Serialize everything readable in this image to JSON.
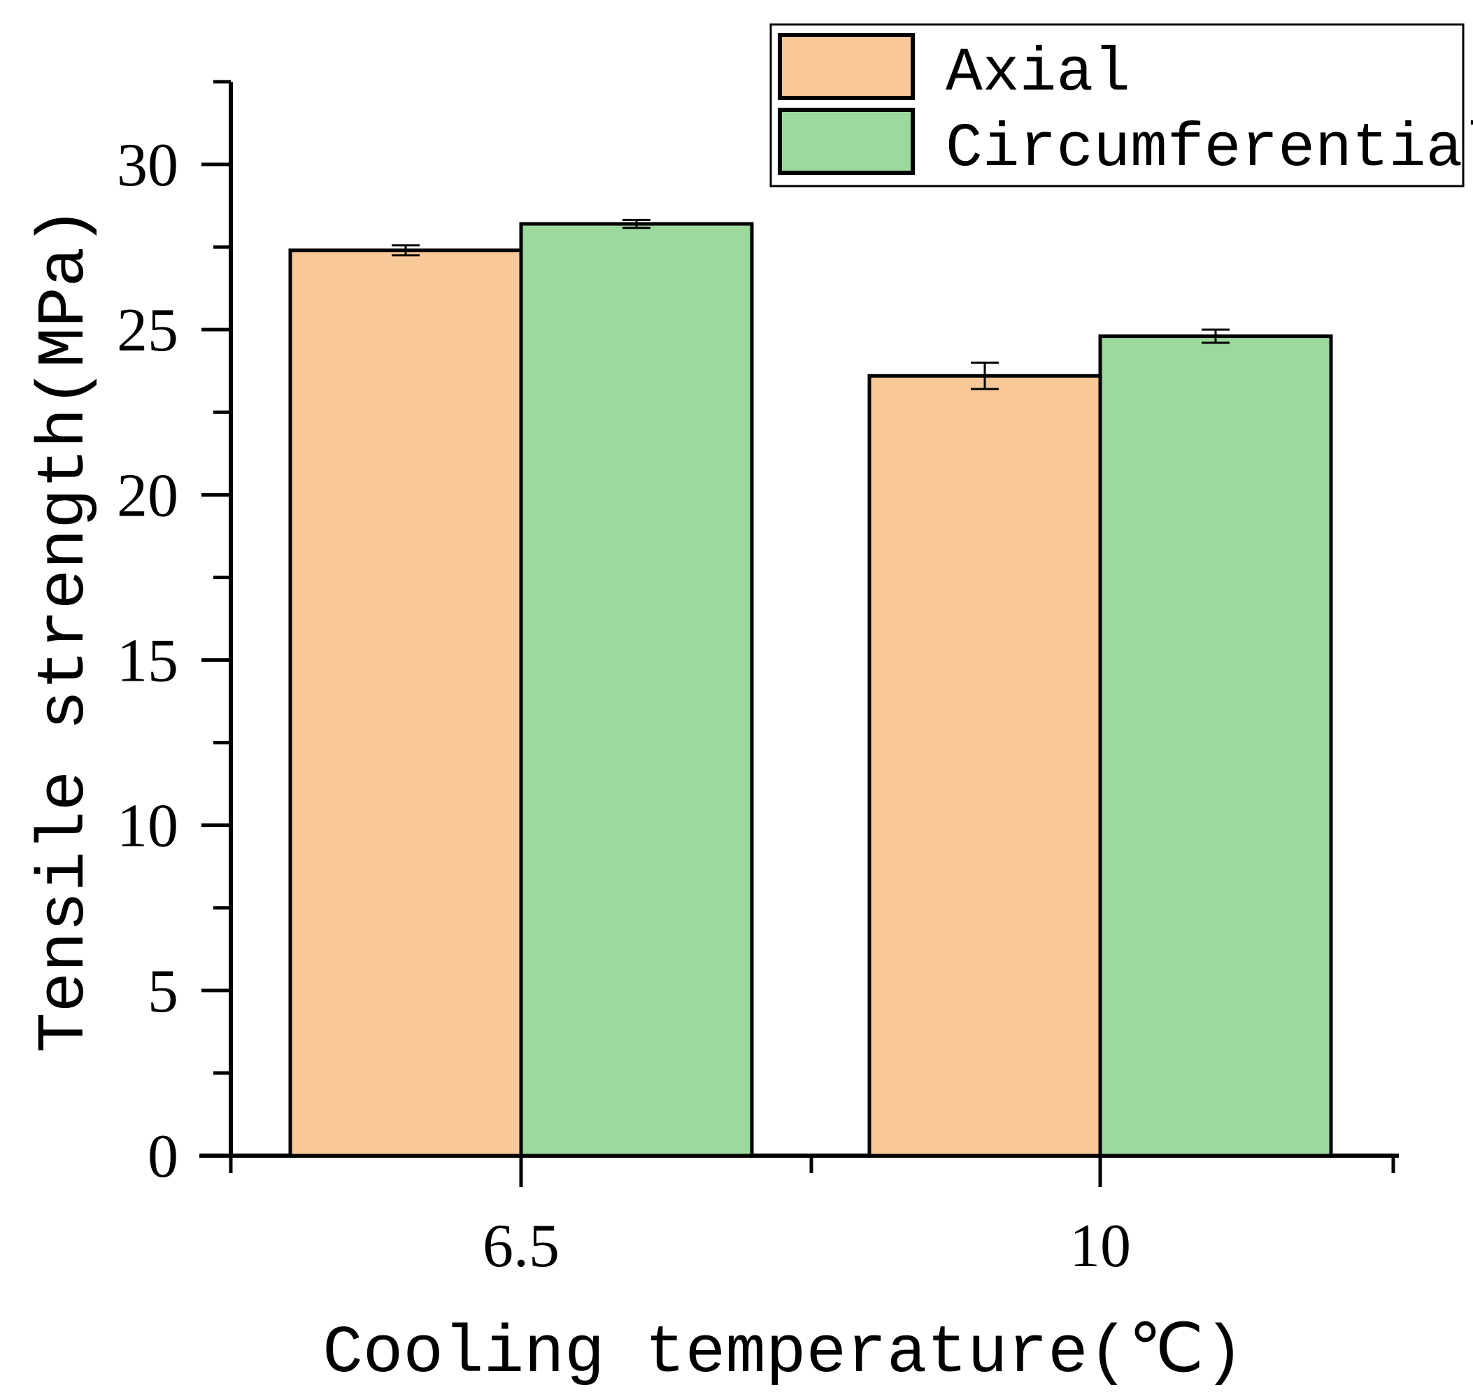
{
  "chart_data": {
    "type": "bar",
    "title": "",
    "xlabel": "Cooling temperature(℃)",
    "ylabel": "Tensile strength(MPa)",
    "categories": [
      "6.5",
      "10"
    ],
    "series": [
      {
        "name": "Axial",
        "color": "#f9c898",
        "values": [
          27.4,
          23.6
        ],
        "errors": [
          0.15,
          0.4
        ]
      },
      {
        "name": "Circumferential",
        "color": "#9dd89d",
        "values": [
          28.2,
          24.8
        ],
        "errors": [
          0.12,
          0.2
        ]
      }
    ],
    "ylim": [
      0,
      32.5
    ],
    "yticks": [
      0,
      5,
      10,
      15,
      20,
      25,
      30
    ],
    "ytick_labels": [
      "0",
      "5",
      "10",
      "15",
      "20",
      "25",
      "30"
    ],
    "legend_position": "top-right",
    "grid": false
  }
}
